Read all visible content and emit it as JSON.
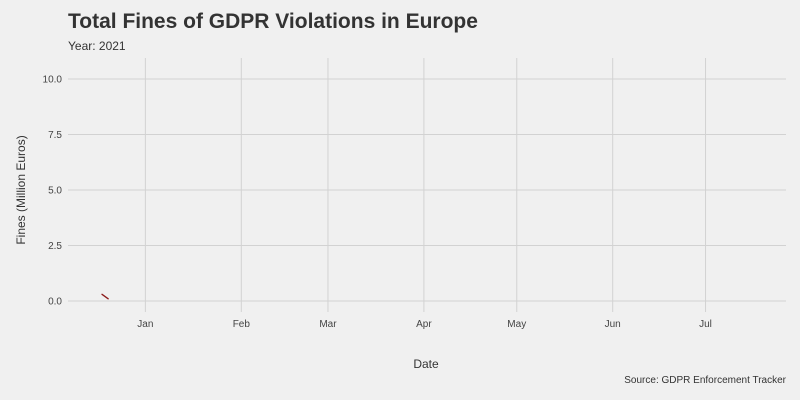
{
  "chart_data": {
    "type": "line",
    "title": "Total Fines of GDPR Violations in Europe",
    "subtitle": "Year: 2021",
    "caption": "Source: GDPR Enforcement Tracker",
    "xlabel": "Date",
    "ylabel": "Fines (Million Euros)",
    "xlim": [
      "2020-12-07",
      "2021-07-27"
    ],
    "ylim": [
      0,
      10.5
    ],
    "x_ticks": [
      {
        "date": "2021-01-01",
        "label": "Jan"
      },
      {
        "date": "2021-02-01",
        "label": "Feb"
      },
      {
        "date": "2021-03-01",
        "label": "Mar"
      },
      {
        "date": "2021-04-01",
        "label": "Apr"
      },
      {
        "date": "2021-05-01",
        "label": "May"
      },
      {
        "date": "2021-06-01",
        "label": "Jun"
      },
      {
        "date": "2021-07-01",
        "label": "Jul"
      }
    ],
    "y_ticks": [
      {
        "value": 0,
        "label": "0.0"
      },
      {
        "value": 2.5,
        "label": "2.5"
      },
      {
        "value": 5,
        "label": "5.0"
      },
      {
        "value": 7.5,
        "label": "7.5"
      },
      {
        "value": 10,
        "label": "10.0"
      }
    ],
    "grid": true,
    "legend": "none",
    "series": [
      {
        "color": "#8b1a1a",
        "points": [
          {
            "x": "2020-12-18",
            "y": 0.3
          },
          {
            "x": "2020-12-20",
            "y": 0.1
          }
        ]
      }
    ]
  },
  "colors": {
    "background": "#f0f0f0",
    "grid": "#d2d2d2",
    "text": "#333333",
    "line": "#8b1a1a"
  }
}
